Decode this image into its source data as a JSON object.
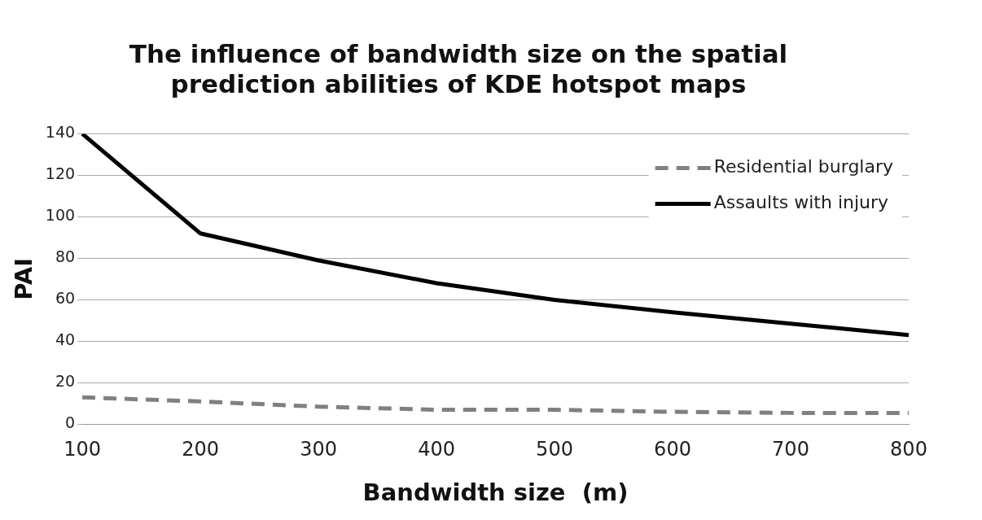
{
  "chart_data": {
    "type": "line",
    "title": [
      "The influence of bandwidth size on the spatial",
      "prediction abilities of KDE hotspot maps"
    ],
    "xlabel": "Bandwidth size  (m)",
    "ylabel": "PAI",
    "categories": [
      "100",
      "200",
      "300",
      "400",
      "500",
      "600",
      "700",
      "800"
    ],
    "series": [
      {
        "name": "Residential burglary",
        "color": "#808080",
        "line_style": "dashed",
        "values": [
          13,
          11,
          8.5,
          7,
          7,
          6,
          5.5,
          5.5
        ]
      },
      {
        "name": "Assaults with injury",
        "color": "#000000",
        "line_style": "solid",
        "values": [
          140,
          92,
          79,
          68,
          60,
          54,
          48.5,
          43
        ]
      }
    ],
    "ylim": [
      0,
      140
    ],
    "yticks": [
      0,
      20,
      40,
      60,
      80,
      100,
      120,
      140
    ],
    "grid": "y",
    "legend": "top right",
    "marker": "none"
  }
}
